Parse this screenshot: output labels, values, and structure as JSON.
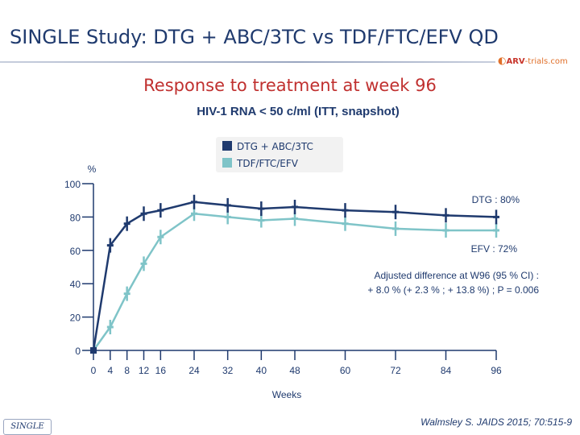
{
  "header": {
    "title": "SINGLE Study: DTG + ABC/3TC vs TDF/FTC/EFV QD",
    "logo_mark": "◐",
    "logo_arv": "ARV",
    "logo_trials": "-trials.com"
  },
  "colors": {
    "dtg": "#1f3a6e",
    "efv": "#7fc4c8",
    "title": "#1f3a6e",
    "subtitle": "#c0302f"
  },
  "footer": {
    "study_tag": "SINGLE",
    "citation": "Walmsley S. JAIDS 2015; 70:515-9"
  },
  "chart_data": {
    "type": "line",
    "title": "Response to treatment at week 96",
    "subtitle": "HIV-1 RNA < 50 c/ml (ITT, snapshot)",
    "ylabel": "%",
    "xlabel": "Weeks",
    "x": [
      0,
      4,
      8,
      12,
      16,
      24,
      32,
      40,
      48,
      60,
      72,
      84,
      96
    ],
    "x_tick_labels": [
      "0",
      "4",
      "8",
      "12",
      "16",
      "24",
      "32",
      "40",
      "48",
      "60",
      "72",
      "84",
      "96"
    ],
    "y_ticks": [
      0,
      20,
      40,
      60,
      80,
      100
    ],
    "y_tick_labels": [
      "0",
      "20",
      "40",
      "60",
      "80",
      "100"
    ],
    "ylim": [
      0,
      100
    ],
    "series": [
      {
        "name": "DTG + ABC/3TC",
        "color": "#1f3a6e",
        "values": [
          0,
          63,
          76,
          82,
          84,
          89,
          87,
          85,
          86,
          84,
          83,
          81,
          80
        ],
        "end_label": "DTG : 80%"
      },
      {
        "name": "TDF/FTC/EFV",
        "color": "#7fc4c8",
        "values": [
          0,
          14,
          34,
          52,
          68,
          82,
          80,
          78,
          79,
          76,
          73,
          72,
          72
        ],
        "end_label": "EFV : 72%"
      }
    ],
    "annotation": {
      "line1": "Adjusted difference at W96 (95 % CI) :",
      "line2": "+ 8.0 % (+ 2.3 % ; + 13.8 %) ; P = 0.006"
    }
  }
}
